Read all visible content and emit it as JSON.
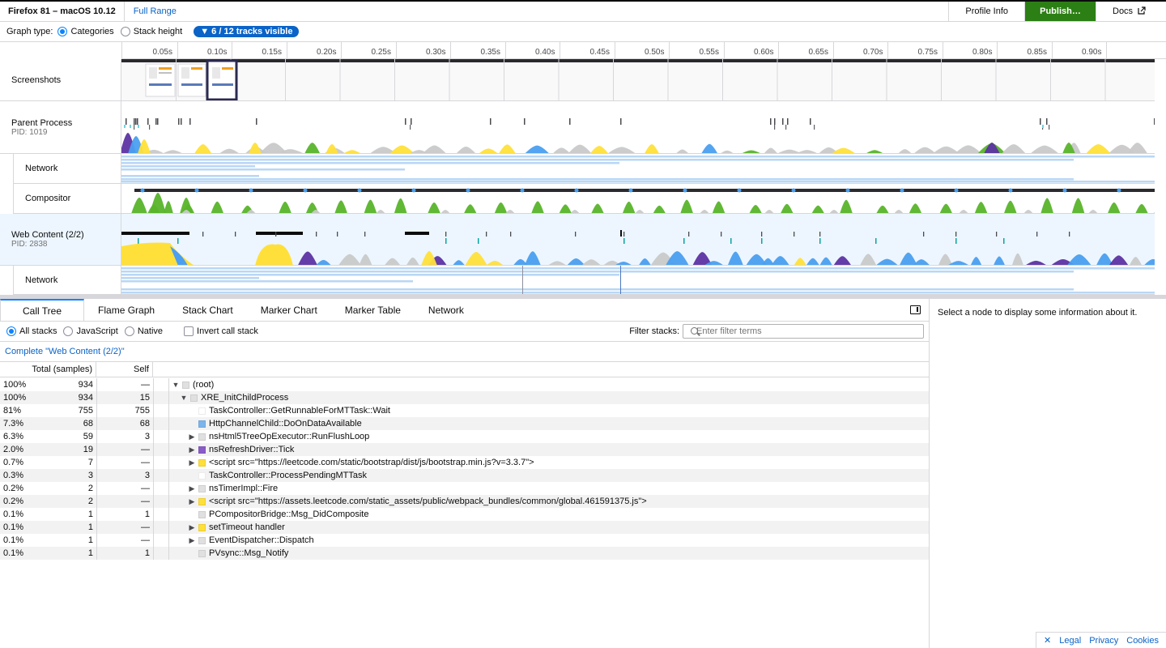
{
  "topbar": {
    "title": "Firefox 81 – macOS 10.12",
    "range": "Full Range",
    "profile_info": "Profile Info",
    "publish": "Publish…",
    "docs": "Docs"
  },
  "settings": {
    "graph_type_label": "Graph type:",
    "opt_categories": "Categories",
    "opt_stack_height": "Stack height",
    "tracks_visible": "▼ 6 / 12 tracks visible"
  },
  "ruler": {
    "ticks": [
      "0.05s",
      "0.10s",
      "0.15s",
      "0.20s",
      "0.25s",
      "0.30s",
      "0.35s",
      "0.40s",
      "0.45s",
      "0.50s",
      "0.55s",
      "0.60s",
      "0.65s",
      "0.70s",
      "0.75s",
      "0.80s",
      "0.85s",
      "0.90s"
    ]
  },
  "tracks": {
    "screenshots": "Screenshots",
    "parent_name": "Parent Process",
    "parent_pid": "PID: 1019",
    "network1": "Network",
    "compositor": "Compositor",
    "web_name": "Web Content (2/2)",
    "web_pid": "PID: 2838",
    "network2": "Network"
  },
  "colors": {
    "yellow": "#ffe03a",
    "green": "#58b42a",
    "blue": "#4a9ff0",
    "purple": "#5d33a3",
    "gray": "#c9c9c9",
    "network": "#b9d7f5",
    "accent": "#0a84ff",
    "publish": "#2c7f14"
  },
  "tabs": [
    "Call Tree",
    "Flame Graph",
    "Stack Chart",
    "Marker Chart",
    "Marker Table",
    "Network"
  ],
  "calltree_opts": {
    "all_stacks": "All stacks",
    "javascript": "JavaScript",
    "native": "Native",
    "invert": "Invert call stack",
    "filter_label": "Filter stacks:",
    "filter_placeholder": "Enter filter terms"
  },
  "breadcrumb": "Complete \"Web Content (2/2)\"",
  "tree_header": {
    "total": "Total (samples)",
    "self": "Self"
  },
  "rows": [
    {
      "pct": "100%",
      "total": "934",
      "self": "—",
      "depth": 0,
      "twisty": "▼",
      "color": "#e0e0e0",
      "name": "(root)"
    },
    {
      "pct": "100%",
      "total": "934",
      "self": "15",
      "depth": 1,
      "twisty": "▼",
      "color": "#e0e0e0",
      "name": "XRE_InitChildProcess"
    },
    {
      "pct": "81%",
      "total": "755",
      "self": "755",
      "depth": 2,
      "twisty": "",
      "color": "#ffffff",
      "name": "TaskController::GetRunnableForMTTask::Wait"
    },
    {
      "pct": "7.3%",
      "total": "68",
      "self": "68",
      "depth": 2,
      "twisty": "",
      "color": "#7cb5ec",
      "name": "HttpChannelChild::DoOnDataAvailable"
    },
    {
      "pct": "6.3%",
      "total": "59",
      "self": "3",
      "depth": 2,
      "twisty": "▶",
      "color": "#e0e0e0",
      "name": "nsHtml5TreeOpExecutor::RunFlushLoop"
    },
    {
      "pct": "2.0%",
      "total": "19",
      "self": "—",
      "depth": 2,
      "twisty": "▶",
      "color": "#8a5cc8",
      "name": "nsRefreshDriver::Tick"
    },
    {
      "pct": "0.7%",
      "total": "7",
      "self": "—",
      "depth": 2,
      "twisty": "▶",
      "color": "#ffe03a",
      "name": "<script src=\"https://leetcode.com/static/bootstrap/dist/js/bootstrap.min.js?v=3.3.7\">"
    },
    {
      "pct": "0.3%",
      "total": "3",
      "self": "3",
      "depth": 2,
      "twisty": "",
      "color": "#ffffff",
      "name": "TaskController::ProcessPendingMTTask"
    },
    {
      "pct": "0.2%",
      "total": "2",
      "self": "—",
      "depth": 2,
      "twisty": "▶",
      "color": "#e0e0e0",
      "name": "nsTimerImpl::Fire"
    },
    {
      "pct": "0.2%",
      "total": "2",
      "self": "—",
      "depth": 2,
      "twisty": "▶",
      "color": "#ffe03a",
      "name": "<script src=\"https://assets.leetcode.com/static_assets/public/webpack_bundles/common/global.461591375.js\">"
    },
    {
      "pct": "0.1%",
      "total": "1",
      "self": "1",
      "depth": 2,
      "twisty": "",
      "color": "#e0e0e0",
      "name": "PCompositorBridge::Msg_DidComposite"
    },
    {
      "pct": "0.1%",
      "total": "1",
      "self": "—",
      "depth": 2,
      "twisty": "▶",
      "color": "#ffe03a",
      "name": "setTimeout handler"
    },
    {
      "pct": "0.1%",
      "total": "1",
      "self": "—",
      "depth": 2,
      "twisty": "▶",
      "color": "#e0e0e0",
      "name": "EventDispatcher::Dispatch"
    },
    {
      "pct": "0.1%",
      "total": "1",
      "self": "1",
      "depth": 2,
      "twisty": "",
      "color": "#e0e0e0",
      "name": "PVsync::Msg_Notify"
    }
  ],
  "sidebar_text": "Select a node to display some information about it.",
  "footer": {
    "close": "✕",
    "legal": "Legal",
    "privacy": "Privacy",
    "cookies": "Cookies"
  }
}
